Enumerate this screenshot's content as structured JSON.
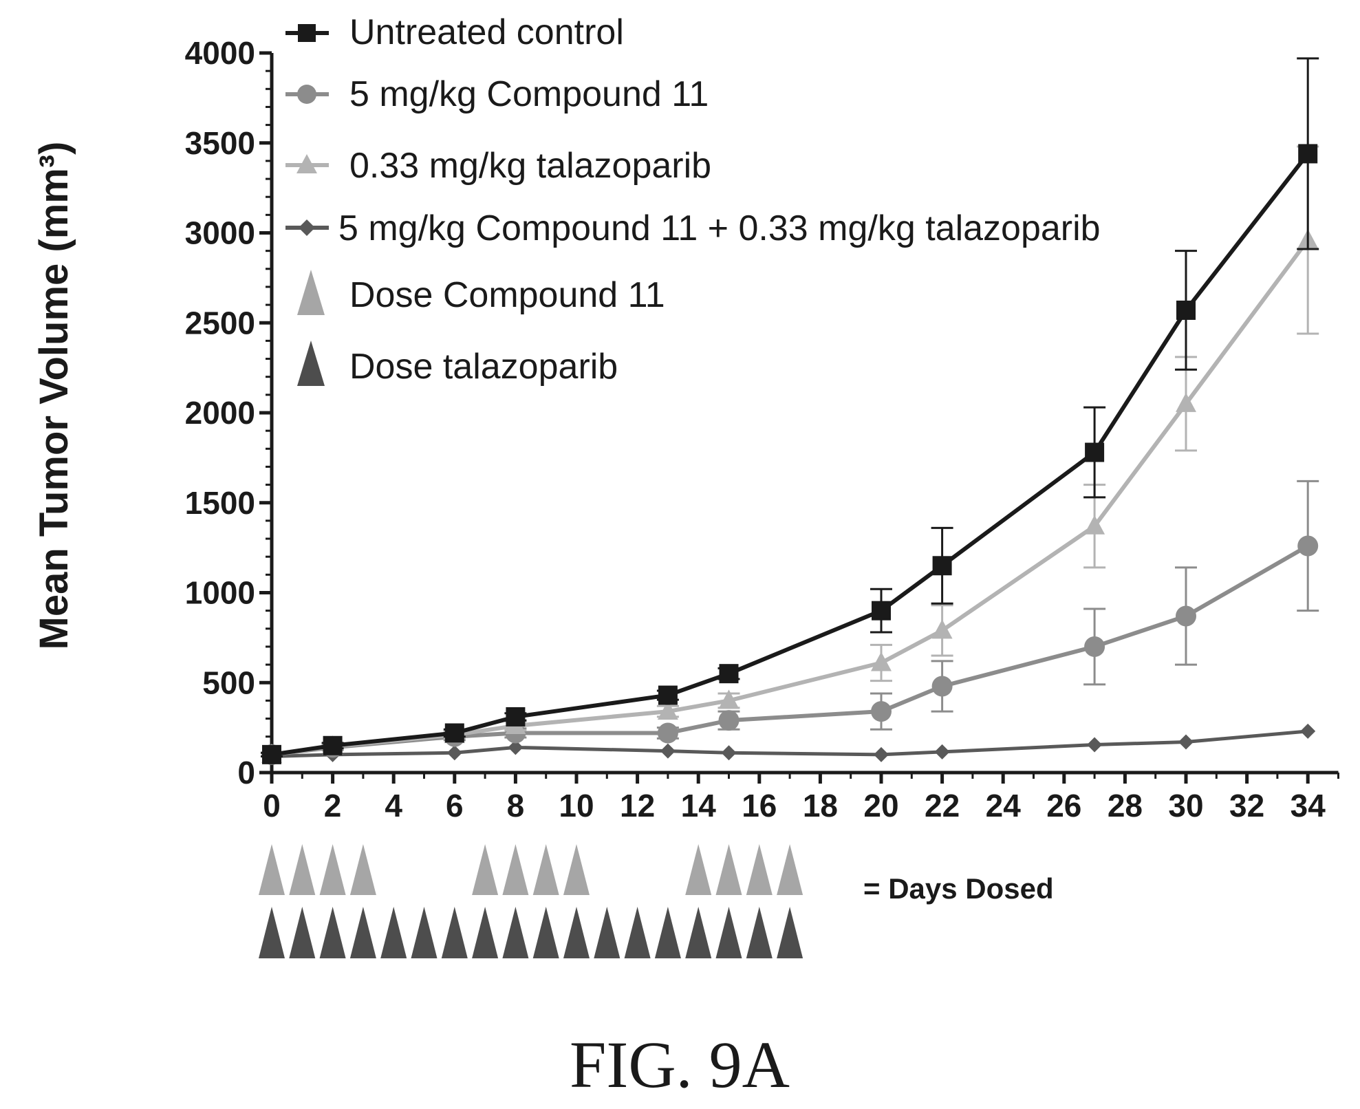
{
  "figure_label": "FIG. 9A",
  "days_dosed_label": "= Days Dosed",
  "colors": {
    "control": "#1a1a1a",
    "compound": "#8c8c8c",
    "talazoparib": "#b3b3b3",
    "combo": "#595959",
    "dose_compound": "#a6a6a6",
    "dose_talazoparib": "#4d4d4d"
  },
  "legend": {
    "series_control": "Untreated control",
    "series_compound": "5 mg/kg Compound 11",
    "series_talazoparib": "0.33 mg/kg talazoparib",
    "series_combo": "5 mg/kg Compound 11 + 0.33 mg/kg talazoparib",
    "dose_compound": "Dose Compound 11",
    "dose_talazoparib": "Dose talazoparib"
  },
  "chart_data": {
    "type": "line",
    "title": "",
    "xlabel": "",
    "ylabel": "Mean Tumor Volume (mm³)",
    "xlim": [
      0,
      35
    ],
    "ylim": [
      0,
      4000
    ],
    "x_ticks": [
      0,
      2,
      4,
      6,
      8,
      10,
      12,
      14,
      16,
      18,
      20,
      22,
      24,
      26,
      28,
      30,
      32,
      34
    ],
    "y_ticks": [
      0,
      500,
      1000,
      1500,
      2000,
      2500,
      3000,
      3500,
      4000
    ],
    "grid": false,
    "legend_position": "top-left",
    "series": [
      {
        "name": "Untreated control",
        "marker": "square",
        "color": "#1a1a1a",
        "x": [
          0,
          2,
          6,
          8,
          13,
          15,
          20,
          22,
          27,
          30,
          34
        ],
        "y": [
          100,
          150,
          220,
          310,
          430,
          550,
          900,
          1150,
          1780,
          2570,
          3440
        ],
        "err": [
          10,
          15,
          20,
          20,
          25,
          30,
          120,
          210,
          250,
          330,
          530
        ]
      },
      {
        "name": "5 mg/kg Compound 11",
        "marker": "circle",
        "color": "#8c8c8c",
        "x": [
          0,
          2,
          6,
          8,
          13,
          15,
          20,
          22,
          27,
          30,
          34
        ],
        "y": [
          100,
          140,
          200,
          220,
          220,
          290,
          340,
          480,
          700,
          870,
          1260
        ],
        "err": [
          10,
          15,
          20,
          25,
          30,
          50,
          100,
          140,
          210,
          270,
          360
        ]
      },
      {
        "name": "0.33 mg/kg talazoparib",
        "marker": "triangle",
        "color": "#b3b3b3",
        "x": [
          0,
          2,
          6,
          8,
          13,
          15,
          20,
          22,
          27,
          30,
          34
        ],
        "y": [
          100,
          145,
          210,
          260,
          340,
          400,
          610,
          790,
          1370,
          2050,
          2960
        ],
        "err": [
          10,
          15,
          20,
          25,
          30,
          40,
          100,
          140,
          230,
          260,
          520
        ]
      },
      {
        "name": "5 mg/kg Compound 11 + 0.33 mg/kg talazoparib",
        "marker": "diamond",
        "color": "#595959",
        "x": [
          0,
          2,
          6,
          8,
          13,
          15,
          20,
          22,
          27,
          30,
          34
        ],
        "y": [
          90,
          100,
          110,
          140,
          120,
          110,
          100,
          115,
          155,
          170,
          230
        ],
        "err": [
          0,
          0,
          0,
          0,
          0,
          0,
          0,
          0,
          0,
          0,
          0
        ]
      }
    ],
    "dose_days": {
      "compound_11": [
        0,
        1,
        2,
        3,
        7,
        8,
        9,
        10,
        14,
        15,
        16,
        17
      ],
      "talazoparib": [
        0,
        1,
        2,
        3,
        4,
        5,
        6,
        7,
        8,
        9,
        10,
        11,
        12,
        13,
        14,
        15,
        16,
        17
      ]
    }
  }
}
